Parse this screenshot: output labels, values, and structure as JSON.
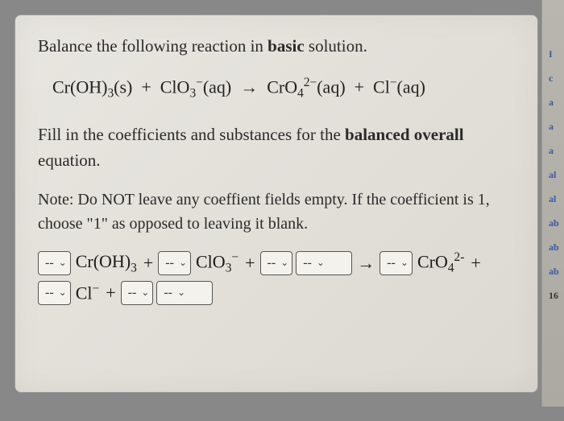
{
  "instruction": {
    "prefix": "Balance the following reaction in ",
    "bold": "basic",
    "suffix": " solution."
  },
  "equation_display_html": "Cr(OH)<sub>3</sub>(s) &nbsp;+&nbsp; ClO<sub>3</sub><sup>&minus;</sup>(aq) &nbsp;&rarr;&nbsp; CrO<sub>4</sub><sup>2&minus;</sup>(aq) &nbsp;+&nbsp; Cl<sup>&minus;</sup>(aq)",
  "fill_text": {
    "prefix": "Fill in the coefficients and substances for the ",
    "bold": "balanced overall",
    "suffix": " equation."
  },
  "note_text": "Note: Do NOT leave any coeffient fields empty. If the coefficient is 1, choose \"1\" as opposed to leaving it blank.",
  "dropdown_placeholder": "--",
  "species": {
    "croh3": "Cr(OH)<sub>3</sub>",
    "clo3": "ClO<sub>3</sub><sup>&minus;</sup>",
    "cro4": "CrO<sub>4</sub><sup>2-</sup>",
    "cl": "Cl<sup>&minus;</sup>"
  },
  "operators": {
    "plus": "+",
    "arrow": "→"
  },
  "side_labels": [
    "I",
    "c",
    "a",
    "a",
    "a",
    "al",
    "al",
    "ab",
    "ab",
    "ab",
    "16"
  ],
  "colors": {
    "panel_bg_start": "#e8e6e0",
    "panel_bg_end": "#dcd9d2",
    "text": "#2a2a2a",
    "dropdown_border": "#555",
    "dropdown_bg": "#f4f2ec"
  }
}
